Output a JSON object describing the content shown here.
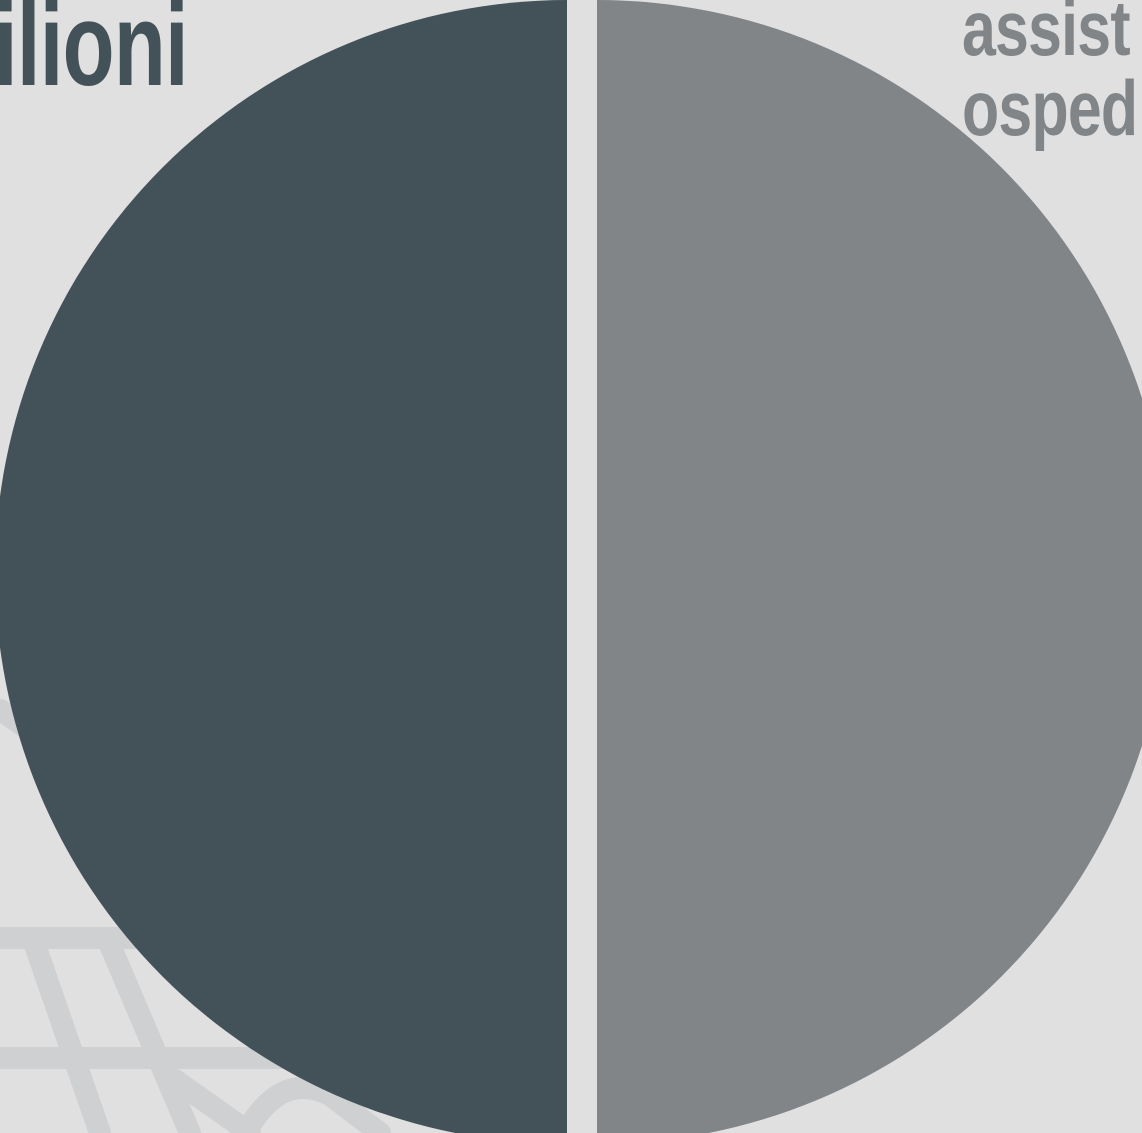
{
  "chart_data": {
    "type": "pie",
    "slices": [
      {
        "label": "ilioni",
        "value": 50,
        "color": "#435258"
      },
      {
        "label": "assist\nosped",
        "value": 50,
        "color": "#818588"
      }
    ],
    "colors": {
      "background": "#e0e0e0",
      "separator": "#e0e0e0",
      "sketch": "#cfd0d2"
    }
  }
}
